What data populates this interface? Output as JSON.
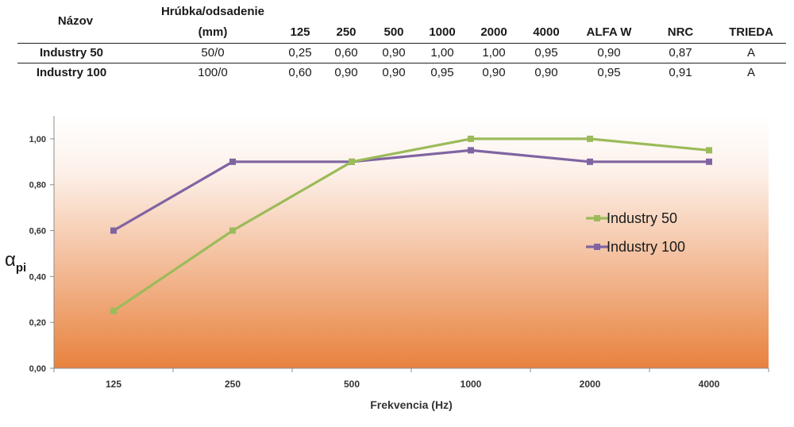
{
  "table": {
    "headers": [
      "Názov",
      "Hrúbka/odsadenie",
      "(mm)",
      "125",
      "250",
      "500",
      "1000",
      "2000",
      "4000",
      "ALFA W",
      "NRC",
      "TRIEDA"
    ],
    "rows": [
      [
        "Industry 50",
        "50/0",
        "0,25",
        "0,60",
        "0,90",
        "1,00",
        "1,00",
        "0,95",
        "0,90",
        "0,87",
        "A"
      ],
      [
        "Industry 100",
        "100/0",
        "0,60",
        "0,90",
        "0,90",
        "0,95",
        "0,90",
        "0,90",
        "0,95",
        "0,91",
        "A"
      ]
    ]
  },
  "chart_data": {
    "type": "line",
    "x": [
      "125",
      "250",
      "500",
      "1000",
      "2000",
      "4000"
    ],
    "xlabel": "Frekvencia (Hz)",
    "ylabel": "α",
    "ylabel_sub": "pi",
    "ylim": [
      0,
      1.1
    ],
    "yticks": [
      0,
      0.2,
      0.4,
      0.6,
      0.8,
      1.0
    ],
    "ytick_labels": [
      "0,00",
      "0,20",
      "0,40",
      "0,60",
      "0,80",
      "1,00"
    ],
    "grid": false,
    "legend": "right",
    "background": "vertical gradient white to orange",
    "series": [
      {
        "name": "Industry 50",
        "color": "#9bbb59",
        "values": [
          0.25,
          0.6,
          0.9,
          1.0,
          1.0,
          0.95
        ]
      },
      {
        "name": "Industry 100",
        "color": "#8064a2",
        "values": [
          0.6,
          0.9,
          0.9,
          0.95,
          0.9,
          0.9
        ]
      }
    ],
    "colors": {
      "gradient_top": "#ffffff",
      "gradient_bottom": "#e8823e",
      "axis": "#8c8c8c"
    }
  }
}
